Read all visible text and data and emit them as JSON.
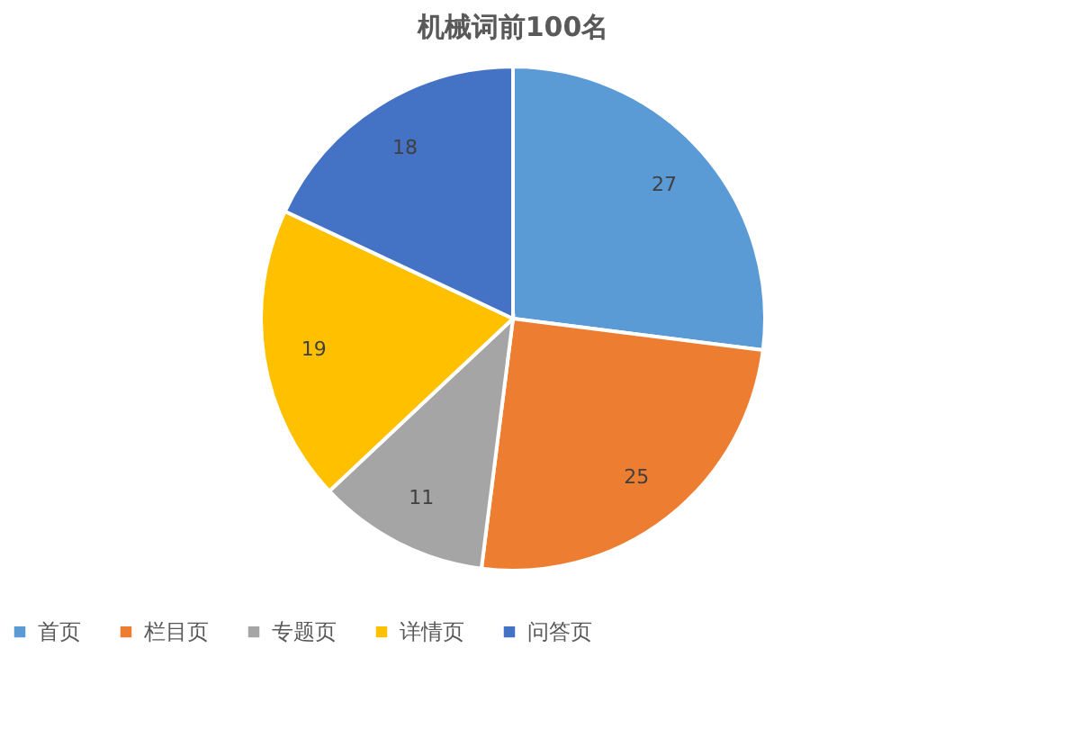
{
  "chart_data": {
    "type": "pie",
    "title": "机械词前100名",
    "categories": [
      "首页",
      "栏目页",
      "专题页",
      "详情页",
      "问答页"
    ],
    "values": [
      27,
      25,
      11,
      19,
      18
    ],
    "colors": [
      "#5b9bd5",
      "#ed7d31",
      "#a5a5a5",
      "#ffc000",
      "#4472c4"
    ],
    "data_labels": true,
    "legend": "bottom"
  }
}
